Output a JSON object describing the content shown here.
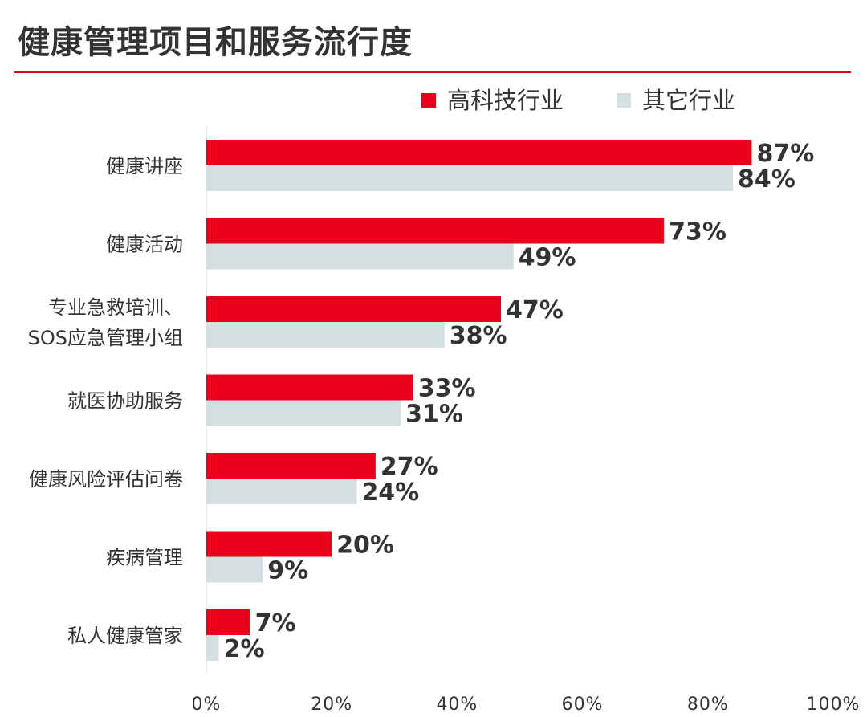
{
  "title": "健康管理项目和服务流行度",
  "colors": {
    "accent": "#e8001c",
    "secondary": "#d4dfe1",
    "text": "#333333",
    "axis": "#cccccc"
  },
  "chart_data": {
    "type": "bar",
    "orientation": "horizontal",
    "title": "健康管理项目和服务流行度",
    "categories": [
      [
        "健康讲座"
      ],
      [
        "健康活动"
      ],
      [
        "专业急救培训、",
        "SOS应急管理小组"
      ],
      [
        "就医协助服务"
      ],
      [
        "健康风险评估问卷"
      ],
      [
        "疾病管理"
      ],
      [
        "私人健康管家"
      ]
    ],
    "series": [
      {
        "name": "高科技行业",
        "color": "#e8001c",
        "values": [
          87,
          73,
          47,
          33,
          27,
          20,
          7
        ]
      },
      {
        "name": "其它行业",
        "color": "#d4dfe1",
        "values": [
          84,
          49,
          38,
          31,
          24,
          9,
          2
        ]
      }
    ],
    "xlim": [
      0,
      100
    ],
    "xticks": [
      "0%",
      "20%",
      "40%",
      "60%",
      "80%",
      "100%"
    ],
    "value_suffix": "%",
    "legend_position": "top-right",
    "grid": false
  }
}
